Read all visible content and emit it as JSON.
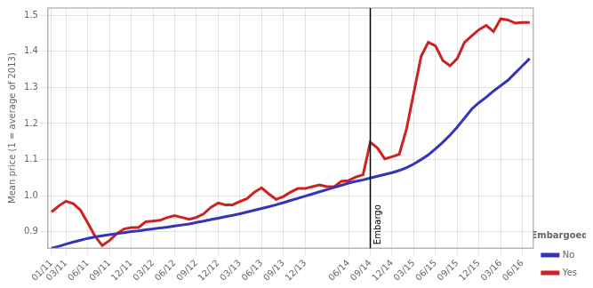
{
  "chart_data": {
    "type": "line",
    "ylabel": "Mean price (1 = average of 2013)",
    "categories": [
      "01/11",
      null,
      "03/11",
      null,
      null,
      "06/11",
      null,
      null,
      "09/11",
      null,
      null,
      "12/11",
      null,
      null,
      "03/12",
      null,
      null,
      "06/12",
      null,
      null,
      "09/12",
      null,
      null,
      "12/12",
      null,
      null,
      "03/13",
      null,
      null,
      "06/13",
      null,
      null,
      "09/13",
      null,
      null,
      "12/13",
      null,
      null,
      null,
      null,
      null,
      "06/14",
      null,
      null,
      "09/14",
      null,
      null,
      "12/14",
      null,
      null,
      "03/15",
      null,
      null,
      "06/15",
      null,
      null,
      "09/15",
      null,
      null,
      "12/15",
      null,
      null,
      "03/16",
      null,
      null,
      "06/16",
      null
    ],
    "series": [
      {
        "name": "No",
        "color": "#3333bb",
        "values": [
          0.855,
          0.86,
          0.866,
          0.872,
          0.877,
          0.882,
          0.886,
          0.889,
          0.892,
          0.895,
          0.898,
          0.901,
          0.903,
          0.906,
          0.908,
          0.911,
          0.913,
          0.916,
          0.919,
          0.922,
          0.926,
          0.93,
          0.934,
          0.938,
          0.942,
          0.946,
          0.95,
          0.955,
          0.96,
          0.965,
          0.97,
          0.975,
          0.981,
          0.987,
          0.993,
          0.999,
          1.005,
          1.011,
          1.017,
          1.023,
          1.029,
          1.035,
          1.04,
          1.044,
          1.049,
          1.054,
          1.059,
          1.064,
          1.07,
          1.078,
          1.088,
          1.1,
          1.113,
          1.13,
          1.148,
          1.168,
          1.19,
          1.215,
          1.24,
          1.258,
          1.273,
          1.29,
          1.305,
          1.32,
          1.34,
          1.36,
          1.38
        ]
      },
      {
        "name": "Yes",
        "color": "#cc2222",
        "values": [
          0.955,
          0.972,
          0.985,
          0.978,
          0.96,
          0.925,
          0.888,
          0.862,
          0.876,
          0.895,
          0.908,
          0.912,
          0.912,
          0.928,
          0.93,
          0.932,
          0.94,
          0.945,
          0.94,
          0.935,
          0.94,
          0.95,
          0.968,
          0.98,
          0.975,
          0.975,
          0.984,
          0.992,
          1.01,
          1.022,
          1.005,
          0.99,
          0.998,
          1.01,
          1.02,
          1.02,
          1.025,
          1.03,
          1.025,
          1.025,
          1.04,
          1.042,
          1.052,
          1.058,
          1.148,
          1.132,
          1.102,
          1.108,
          1.115,
          1.185,
          1.285,
          1.385,
          1.425,
          1.415,
          1.375,
          1.36,
          1.38,
          1.425,
          1.443,
          1.46,
          1.472,
          1.455,
          1.49,
          1.487,
          1.478,
          1.48,
          1.48
        ]
      }
    ],
    "legend_title": "Embargoed",
    "legend": "lower right",
    "ylim": [
      0.855,
      1.52
    ],
    "yticks": [
      0.9,
      {
        "value": 1.0,
        "label": "1.0"
      },
      1.1,
      1.2,
      1.3,
      1.4,
      1.5
    ],
    "annotations": [
      {
        "text": "Embargo",
        "x": "09/14"
      }
    ],
    "grid": true
  }
}
